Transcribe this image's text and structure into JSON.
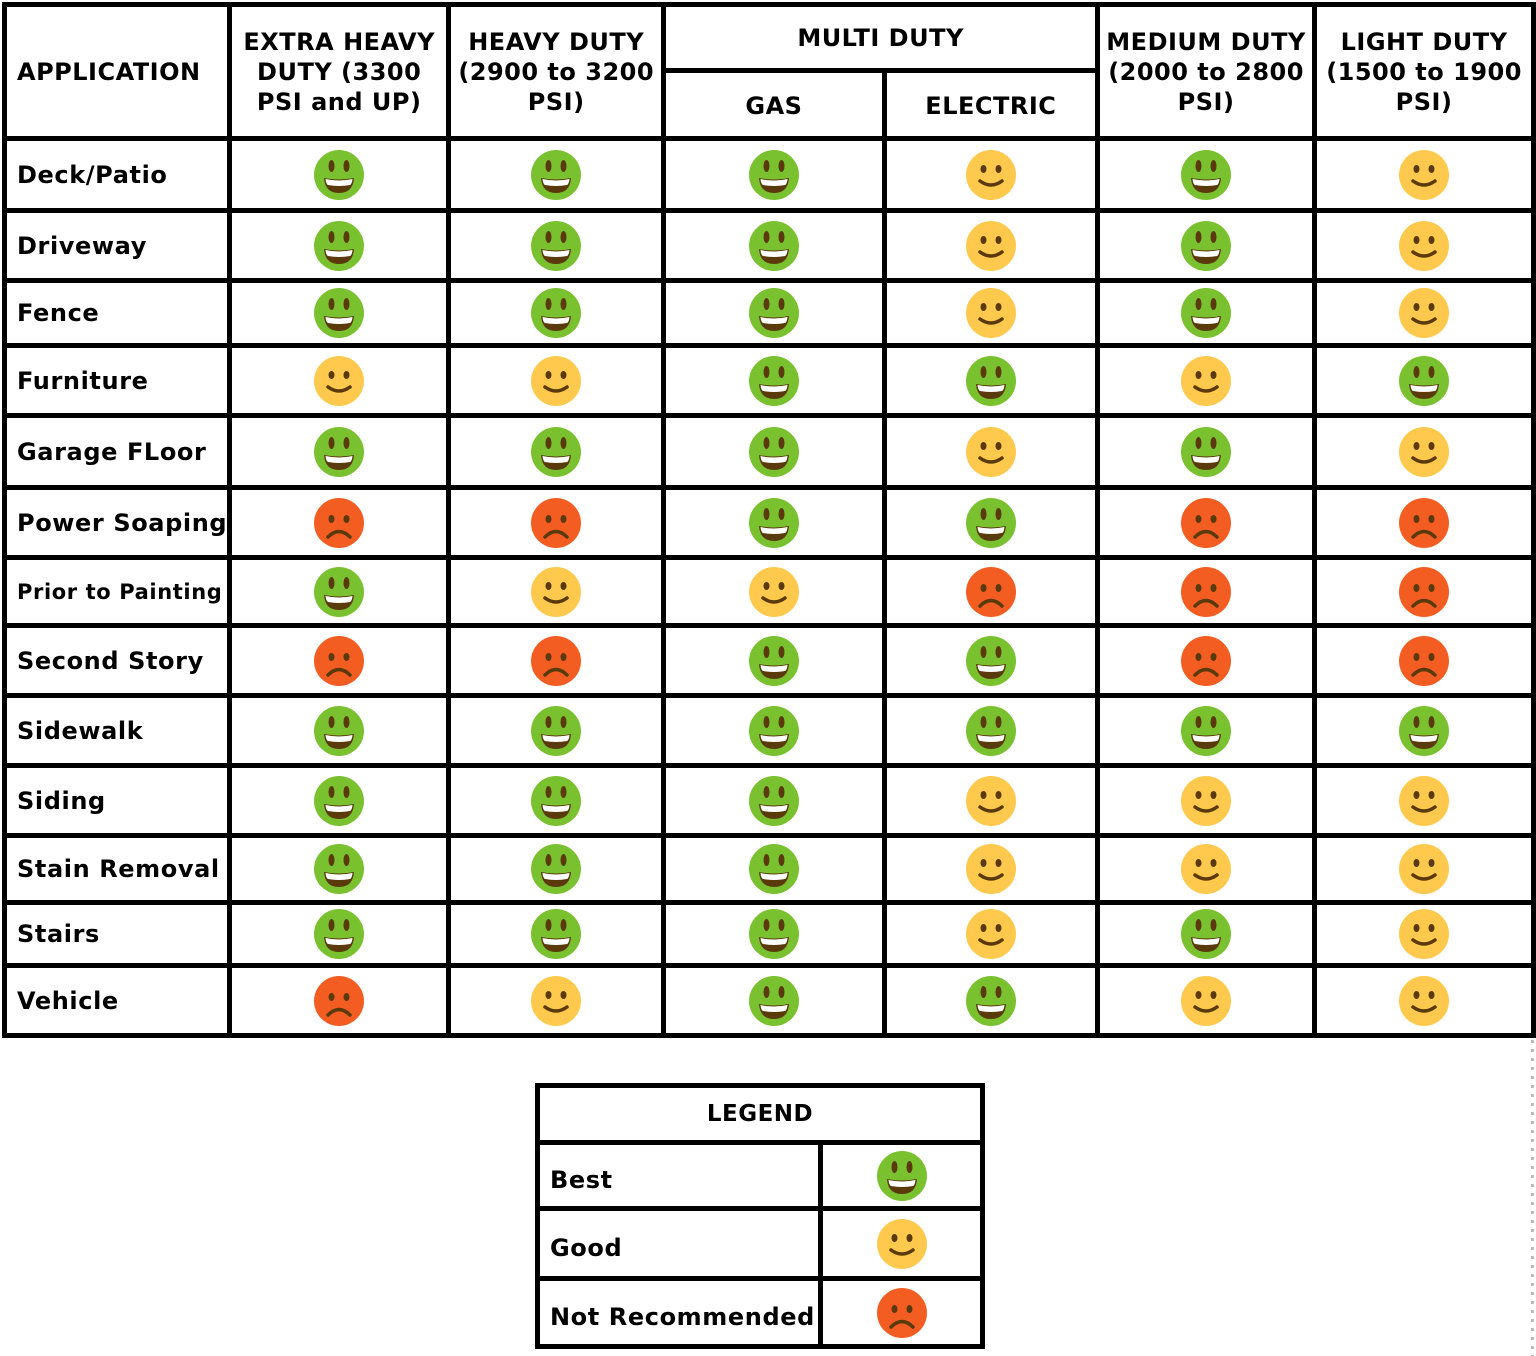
{
  "headers": {
    "application": "APPLICATION",
    "extra_heavy": "EXTRA HEAVY DUTY (3300 PSI and UP)",
    "heavy": "HEAVY DUTY (2900 to 3200 PSI)",
    "multi": "MULTI DUTY",
    "multi_gas": "GAS",
    "multi_electric": "ELECTRIC",
    "medium": "MEDIUM DUTY (2000 to 2800 PSI)",
    "light": "LIGHT DUTY (1500 to 1900 PSI)"
  },
  "columns": [
    "EXTRA HEAVY DUTY (3300 PSI and UP)",
    "HEAVY DUTY (2900 to 3200 PSI)",
    "MULTI DUTY - GAS",
    "MULTI DUTY - ELECTRIC",
    "MEDIUM DUTY (2000 to 2800 PSI)",
    "LIGHT DUTY (1500 to 1900 PSI)"
  ],
  "rows": [
    {
      "label": "Deck/Patio",
      "ratings": [
        "best",
        "best",
        "best",
        "good",
        "best",
        "good"
      ]
    },
    {
      "label": "Driveway",
      "ratings": [
        "best",
        "best",
        "best",
        "good",
        "best",
        "good"
      ]
    },
    {
      "label": "Fence",
      "ratings": [
        "best",
        "best",
        "best",
        "good",
        "best",
        "good"
      ]
    },
    {
      "label": "Furniture",
      "ratings": [
        "good",
        "good",
        "best",
        "best",
        "good",
        "best"
      ]
    },
    {
      "label": "Garage FLoor",
      "ratings": [
        "best",
        "best",
        "best",
        "good",
        "best",
        "good"
      ]
    },
    {
      "label": "Power Soaping",
      "ratings": [
        "not",
        "not",
        "best",
        "best",
        "not",
        "not"
      ]
    },
    {
      "label": "Prior to Painting",
      "ratings": [
        "best",
        "good",
        "good",
        "not",
        "not",
        "not"
      ]
    },
    {
      "label": "Second Story",
      "ratings": [
        "not",
        "not",
        "best",
        "best",
        "not",
        "not"
      ]
    },
    {
      "label": "Sidewalk",
      "ratings": [
        "best",
        "best",
        "best",
        "best",
        "best",
        "best"
      ]
    },
    {
      "label": "Siding",
      "ratings": [
        "best",
        "best",
        "best",
        "good",
        "good",
        "good"
      ]
    },
    {
      "label": "Stain Removal",
      "ratings": [
        "best",
        "best",
        "best",
        "good",
        "good",
        "good"
      ]
    },
    {
      "label": "Stairs",
      "ratings": [
        "best",
        "best",
        "best",
        "good",
        "best",
        "good"
      ]
    },
    {
      "label": "Vehicle",
      "ratings": [
        "not",
        "good",
        "best",
        "best",
        "good",
        "good"
      ]
    }
  ],
  "legend": {
    "title": "LEGEND",
    "items": [
      {
        "key": "best",
        "label": "Best",
        "icon": "grinning-face-icon",
        "color": "#7ac12f"
      },
      {
        "key": "good",
        "label": "Good",
        "icon": "smiling-face-icon",
        "color": "#ffc94d"
      },
      {
        "key": "not",
        "label": "Not Recommended",
        "icon": "frowning-face-icon",
        "color": "#f45d22"
      }
    ]
  },
  "colors": {
    "best": "#7ac12f",
    "good": "#ffc94d",
    "not": "#f45d22",
    "feature": "#5a3a0a",
    "border": "#000000"
  }
}
